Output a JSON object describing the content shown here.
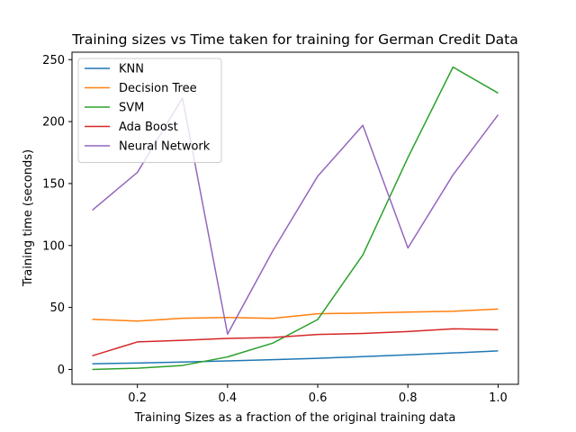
{
  "chart_data": {
    "type": "line",
    "title": "Training sizes vs Time taken for training for German Credit Data",
    "xlabel": "Training Sizes as a fraction of the original training data",
    "ylabel": "Training time (seconds)",
    "xlim": [
      0.055,
      1.045
    ],
    "ylim": [
      -12,
      256
    ],
    "xticks": [
      0.2,
      0.4,
      0.6,
      0.8,
      1.0
    ],
    "xtick_labels": [
      "0.2",
      "0.4",
      "0.6",
      "0.8",
      "1.0"
    ],
    "yticks": [
      0,
      50,
      100,
      150,
      200,
      250
    ],
    "ytick_labels": [
      "0",
      "50",
      "100",
      "150",
      "200",
      "250"
    ],
    "grid": false,
    "legend_position": "top-left",
    "x": [
      0.1,
      0.2,
      0.3,
      0.4,
      0.5,
      0.6,
      0.7,
      0.8,
      0.9,
      1.0
    ],
    "series": [
      {
        "name": "KNN",
        "color": "#1f77b4",
        "values": [
          4.5,
          5.2,
          6.0,
          6.9,
          7.9,
          9.0,
          10.3,
          11.8,
          13.3,
          15.0
        ]
      },
      {
        "name": "Decision Tree",
        "color": "#ff7f0e",
        "values": [
          40.5,
          39.0,
          41.3,
          41.9,
          41.2,
          44.9,
          45.5,
          46.3,
          46.9,
          48.7
        ]
      },
      {
        "name": "SVM",
        "color": "#2ca02c",
        "values": [
          0.0,
          1.0,
          3.2,
          10.1,
          21.2,
          40.3,
          92.4,
          171.0,
          244.0,
          223.0
        ]
      },
      {
        "name": "Ada Boost",
        "color": "#d62728",
        "values": [
          11.0,
          22.2,
          23.5,
          25.0,
          25.8,
          28.2,
          29.0,
          30.6,
          32.8,
          32.0
        ]
      },
      {
        "name": "Neural Network",
        "color": "#9467bd",
        "values": [
          128.5,
          159.0,
          219.0,
          28.5,
          95.5,
          156.0,
          197.0,
          98.0,
          157.0,
          205.5
        ]
      }
    ]
  }
}
